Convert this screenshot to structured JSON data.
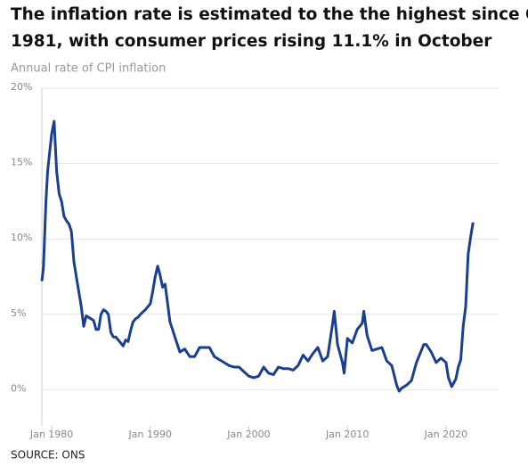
{
  "chart_data": {
    "type": "line",
    "title": [
      "The inflation rate is estimated to the the highest since October",
      "1981, with consumer prices rising 11.1% in October"
    ],
    "subtitle": "Annual rate of CPI inflation",
    "source": "SOURCE: ONS",
    "x": [
      "Jan 1979",
      "Mar 1979",
      "Jun 1979",
      "Aug 1979",
      "Oct 1979",
      "Jan 1980",
      "Apr 1980",
      "Jul 1980",
      "Oct 1980",
      "Jan 1981",
      "Apr 1981",
      "Jul 1981",
      "Oct 1981",
      "Jan 1982",
      "Apr 1982",
      "Jul 1982",
      "Oct 1982",
      "Jan 1983",
      "Apr 1983",
      "Jul 1983",
      "Oct 1983",
      "Jan 1984",
      "Apr 1984",
      "Jul 1984",
      "Oct 1984",
      "Jan 1985",
      "Apr 1985",
      "Jul 1985",
      "Oct 1985",
      "Jan 1986",
      "Apr 1986",
      "Jul 1986",
      "Oct 1986",
      "Jan 1987",
      "Apr 1987",
      "Jul 1987",
      "Oct 1987",
      "Jan 1988",
      "Apr 1988",
      "Jul 1988",
      "Oct 1988",
      "Jan 1989",
      "Jul 1989",
      "Jan 1990",
      "Apr 1990",
      "Jul 1990",
      "Oct 1990",
      "Jan 1991",
      "Apr 1991",
      "Jul 1991",
      "Oct 1991",
      "Jan 1992",
      "Apr 1992",
      "Jul 1992",
      "Oct 1992",
      "Jan 1993",
      "Jul 1993",
      "Jan 1994",
      "Jul 1994",
      "Jan 1995",
      "Jul 1995",
      "Jan 1996",
      "Jul 1996",
      "Jan 1997",
      "Jul 1997",
      "Jan 1998",
      "Jul 1998",
      "Jan 1999",
      "Jul 1999",
      "Jan 2000",
      "Jul 2000",
      "Jan 2001",
      "Jul 2001",
      "Jan 2002",
      "Jul 2002",
      "Jan 2003",
      "Jul 2003",
      "Jan 2004",
      "Jul 2004",
      "Jan 2005",
      "Jul 2005",
      "Jan 2006",
      "Jul 2006",
      "Jan 2007",
      "Jul 2007",
      "Jan 2008",
      "Jul 2008",
      "Sep 2008",
      "Jan 2009",
      "Jul 2009",
      "Sep 2009",
      "Jan 2010",
      "Jul 2010",
      "Jan 2011",
      "Jul 2011",
      "Sep 2011",
      "Jan 2012",
      "Jul 2012",
      "Jan 2013",
      "Jul 2013",
      "Jan 2014",
      "Jul 2014",
      "Jan 2015",
      "Apr 2015",
      "Jul 2015",
      "Jan 2016",
      "Jul 2016",
      "Jan 2017",
      "Jul 2017",
      "Oct 2017",
      "Jan 2018",
      "Jul 2018",
      "Jan 2019",
      "Jul 2019",
      "Jan 2020",
      "Apr 2020",
      "Aug 2020",
      "Jan 2021",
      "Apr 2021",
      "Jul 2021",
      "Oct 2021",
      "Jan 2022",
      "Apr 2022",
      "Jul 2022",
      "Oct 2022"
    ],
    "series": [
      {
        "name": "CPI inflation",
        "color": "#1a3f8f",
        "values": [
          7.2,
          8.1,
          12.5,
          14.5,
          15.5,
          17.0,
          17.8,
          14.5,
          13.0,
          12.5,
          11.5,
          11.2,
          11.0,
          10.5,
          8.5,
          7.5,
          6.5,
          5.5,
          4.2,
          4.9,
          4.8,
          4.7,
          4.6,
          4.0,
          4.0,
          5.0,
          5.3,
          5.2,
          5.0,
          3.8,
          3.5,
          3.5,
          3.3,
          3.1,
          2.9,
          3.3,
          3.2,
          3.9,
          4.5,
          4.7,
          4.8,
          5.0,
          5.3,
          5.7,
          6.5,
          7.5,
          8.2,
          7.6,
          6.8,
          7.0,
          5.8,
          4.5,
          4.0,
          3.5,
          3.0,
          2.5,
          2.7,
          2.2,
          2.2,
          2.8,
          2.8,
          2.8,
          2.2,
          2.0,
          1.8,
          1.6,
          1.5,
          1.5,
          1.2,
          0.9,
          0.8,
          0.9,
          1.5,
          1.1,
          1.0,
          1.5,
          1.4,
          1.4,
          1.3,
          1.6,
          2.3,
          1.9,
          2.4,
          2.8,
          1.9,
          2.2,
          4.4,
          5.2,
          3.0,
          1.8,
          1.1,
          3.4,
          3.1,
          4.0,
          4.4,
          5.2,
          3.6,
          2.6,
          2.7,
          2.8,
          1.9,
          1.6,
          0.3,
          -0.1,
          0.1,
          0.3,
          0.6,
          1.8,
          2.6,
          3.0,
          3.0,
          2.5,
          1.8,
          2.1,
          1.8,
          0.8,
          0.2,
          0.7,
          1.5,
          2.0,
          4.2,
          5.5,
          9.0,
          10.1,
          11.1
        ]
      }
    ],
    "xticks": [
      "Jan 1980",
      "Jan 1990",
      "Jan 2000",
      "Jan 2010",
      "Jan 2020"
    ],
    "ylim": [
      -2.4,
      20
    ],
    "yticks": [
      {
        "value": 0,
        "label": "0%"
      },
      {
        "value": 5,
        "label": "5%"
      },
      {
        "value": 10,
        "label": "10%"
      },
      {
        "value": 15,
        "label": "15%"
      },
      {
        "value": 20,
        "label": "20%"
      }
    ],
    "grid": true
  }
}
